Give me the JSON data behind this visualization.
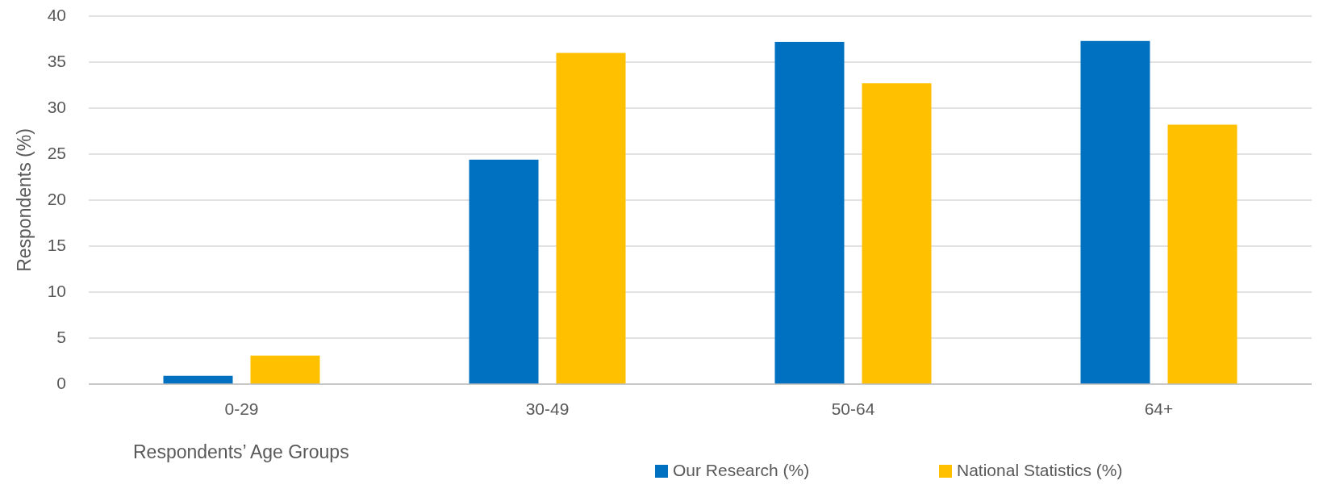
{
  "chart_data": {
    "type": "bar",
    "xlabel": "Respondents’ Age Groups",
    "ylabel": "Respondents (%)",
    "categories": [
      "0-29",
      "30-49",
      "50-64",
      "64+"
    ],
    "series": [
      {
        "name": "Our Research (%)",
        "color": "#0070c0",
        "values": [
          0.9,
          24.4,
          37.2,
          37.3
        ]
      },
      {
        "name": "National Statistics (%)",
        "color": "#ffc000",
        "values": [
          3.1,
          36.0,
          32.7,
          28.2
        ]
      }
    ],
    "ylim": [
      0,
      40
    ],
    "yticks": [
      0,
      5,
      10,
      15,
      20,
      25,
      30,
      35,
      40
    ],
    "grid": "y",
    "legend": "bottom"
  }
}
